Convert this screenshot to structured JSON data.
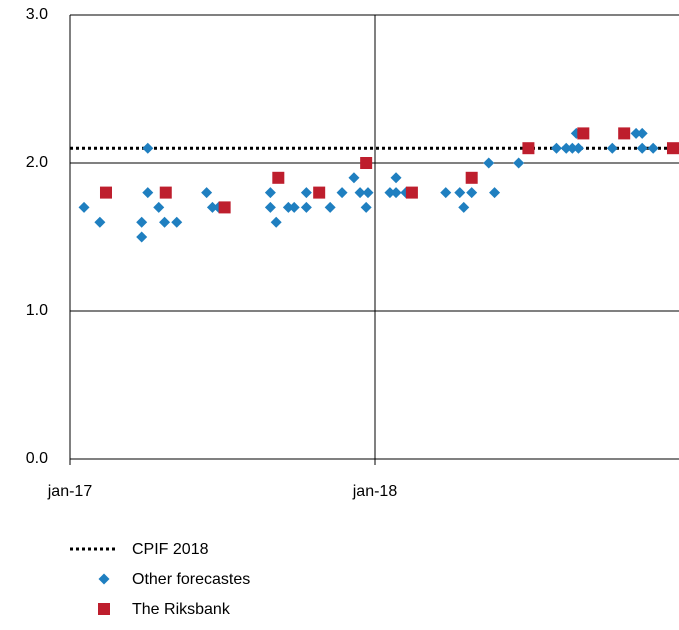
{
  "chart_data": {
    "type": "scatter",
    "xlim": [
      2017,
      2019
    ],
    "xticks": [
      {
        "value": 2017,
        "label": "jan-17"
      },
      {
        "value": 2018,
        "label": "jan-18"
      }
    ],
    "ylim": [
      0,
      3
    ],
    "yticks": [
      {
        "value": 0,
        "label": "0.0"
      },
      {
        "value": 1,
        "label": "1.0"
      },
      {
        "value": 2,
        "label": "2.0"
      },
      {
        "value": 3,
        "label": "3.0"
      }
    ],
    "grid": true,
    "reference_line": {
      "name": "CPIF 2018",
      "value": 2.1,
      "color": "#000000",
      "style": "dotted"
    },
    "series": [
      {
        "name": "Other forecastes",
        "color": "#1f7fc0",
        "marker": "diamond",
        "x": [
          2017.046,
          2017.098,
          2017.255,
          2017.255,
          2017.235,
          2017.235,
          2017.291,
          2017.31,
          2017.35,
          2017.448,
          2017.467,
          2017.487,
          2017.657,
          2017.657,
          2017.676,
          2017.716,
          2017.735,
          2017.775,
          2017.775,
          2017.853,
          2017.892,
          2017.931,
          2017.951,
          2017.971,
          2017.977,
          2018.049,
          2018.069,
          2018.069,
          2018.101,
          2018.232,
          2018.278,
          2018.291,
          2018.317,
          2018.317,
          2018.373,
          2018.392,
          2018.471,
          2018.595,
          2018.627,
          2018.647,
          2018.66,
          2018.667,
          2018.778,
          2018.856,
          2018.876,
          2018.876,
          2018.912,
          2018.98
        ],
        "values": [
          1.7,
          1.6,
          2.1,
          1.8,
          1.5,
          1.6,
          1.7,
          1.6,
          1.6,
          1.8,
          1.7,
          1.7,
          1.8,
          1.7,
          1.6,
          1.7,
          1.7,
          1.8,
          1.7,
          1.7,
          1.8,
          1.9,
          1.8,
          1.7,
          1.8,
          1.8,
          1.9,
          1.8,
          1.8,
          1.8,
          1.8,
          1.7,
          1.9,
          1.8,
          2.0,
          1.8,
          2.0,
          2.1,
          2.1,
          2.1,
          2.2,
          2.1,
          2.1,
          2.2,
          2.2,
          2.1,
          2.1,
          2.1
        ]
      },
      {
        "name": "The Riksbank",
        "color": "#be1e2d",
        "marker": "square",
        "x": [
          2017.118,
          2017.314,
          2017.507,
          2017.683,
          2017.817,
          2017.971,
          2018.121,
          2018.317,
          2018.503,
          2018.683,
          2018.817,
          2018.977
        ],
        "values": [
          1.8,
          1.8,
          1.7,
          1.9,
          1.8,
          2.0,
          1.8,
          1.9,
          2.1,
          2.2,
          2.2,
          2.1
        ]
      }
    ]
  }
}
